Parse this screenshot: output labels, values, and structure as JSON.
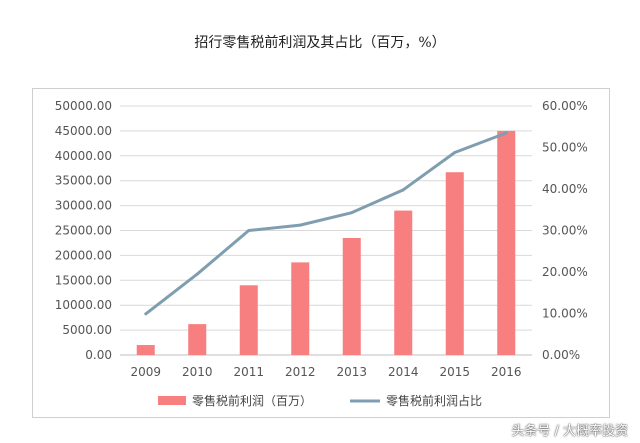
{
  "chart_data": {
    "type": "bar",
    "title": "招行零售税前利润及其占比（百万，%）",
    "categories": [
      "2009",
      "2010",
      "2011",
      "2012",
      "2013",
      "2014",
      "2015",
      "2016"
    ],
    "series": [
      {
        "name": "零售税前利润（百万）",
        "type": "bar",
        "axis": "left",
        "color": "#f77f80",
        "values": [
          2000,
          6200,
          14000,
          18600,
          23500,
          29000,
          36700,
          45000
        ]
      },
      {
        "name": "零售税前利润占比",
        "type": "line",
        "axis": "right",
        "color": "#7f9eb0",
        "values": [
          0.099,
          0.195,
          0.3,
          0.313,
          0.343,
          0.398,
          0.488,
          0.535
        ]
      }
    ],
    "ylim_left": [
      0,
      50000
    ],
    "yticks_left": [
      "0.00",
      "5000.00",
      "10000.00",
      "15000.00",
      "20000.00",
      "25000.00",
      "30000.00",
      "35000.00",
      "40000.00",
      "45000.00",
      "50000.00"
    ],
    "ylim_right": [
      0,
      0.6
    ],
    "yticks_right": [
      "0.00%",
      "10.00%",
      "20.00%",
      "30.00%",
      "40.00%",
      "50.00%",
      "60.00%"
    ],
    "grid": true,
    "legend": "bottom"
  },
  "watermark": "头条号 / 大概率投资"
}
